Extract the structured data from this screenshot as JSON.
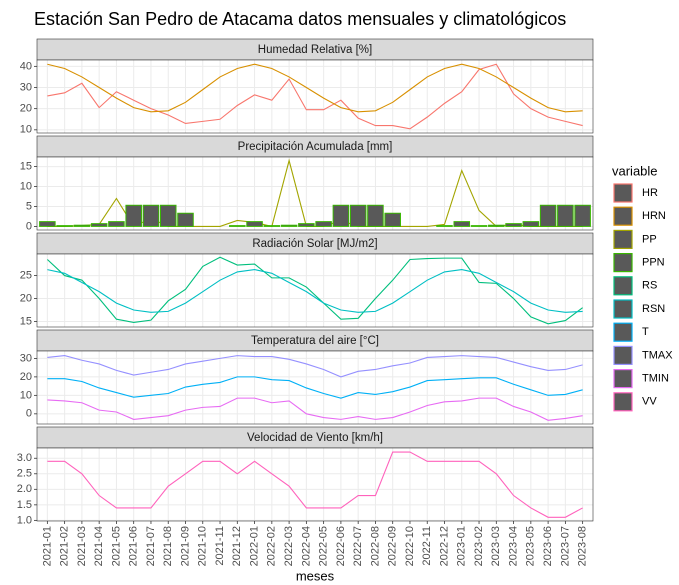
{
  "chart_data": {
    "type": "line",
    "title": "Estación San Pedro de Atacama datos mensuales y climatológicos",
    "xlabel": "meses",
    "legend_title": "variable",
    "categories": [
      "2021-01",
      "2021-02",
      "2021-03",
      "2021-04",
      "2021-05",
      "2021-06",
      "2021-07",
      "2021-08",
      "2021-09",
      "2021-10",
      "2021-11",
      "2021-12",
      "2022-01",
      "2022-02",
      "2022-03",
      "2022-04",
      "2022-05",
      "2022-06",
      "2022-07",
      "2022-08",
      "2022-09",
      "2022-10",
      "2022-11",
      "2022-12",
      "2023-01",
      "2023-02",
      "2023-03",
      "2023-04",
      "2023-05",
      "2023-06",
      "2023-07",
      "2023-08"
    ],
    "grid": true,
    "panels": [
      {
        "title": "Humedad Relativa [%]",
        "ylim": [
          8.5,
          43
        ],
        "yticks": [
          10,
          20,
          30,
          40
        ],
        "series": [
          {
            "name": "HR",
            "color": "#F8766D",
            "values": [
              26,
              27.5,
              32,
              20.5,
              28,
              24,
              20,
              17,
              13,
              14,
              15,
              21.5,
              26.5,
              24,
              34,
              19.5,
              19.5,
              24,
              15.5,
              12,
              12,
              10.5,
              16,
              22.5,
              28,
              38.5,
              41,
              27,
              20,
              16,
              14,
              12
            ]
          },
          {
            "name": "HRN",
            "color": "#D89000",
            "values": [
              41,
              39,
              35,
              30,
              25,
              20.5,
              18.5,
              19,
              23,
              29,
              35,
              39,
              41,
              39,
              35,
              30,
              25,
              20.5,
              18.5,
              19,
              23,
              29,
              35,
              39,
              41,
              39,
              35,
              30,
              25,
              20.5,
              18.5,
              19
            ]
          }
        ]
      },
      {
        "title": "Precipitación Acumulada [mm]",
        "ylim": [
          -0.9,
          17.4
        ],
        "yticks": [
          0,
          5,
          10,
          15
        ],
        "series": [
          {
            "name": "PP",
            "color": "#A3A500",
            "values": [
              0,
              0,
              0.2,
              0.5,
              7,
              0,
              2,
              0,
              0,
              0,
              0,
              1.5,
              1,
              0,
              16.5,
              0,
              0,
              1.5,
              0,
              0,
              0,
              0,
              0,
              0.5,
              14,
              4,
              0,
              0.5,
              0,
              0,
              0,
              0
            ]
          },
          {
            "name": "PPN",
            "color": "#39B600",
            "type": "bar",
            "values": [
              1.2,
              0.2,
              0.3,
              0.7,
              1.2,
              5.3,
              5.3,
              5.3,
              3.3,
              0,
              0,
              0.2,
              1.2,
              0.2,
              0.3,
              0.7,
              1.2,
              5.3,
              5.3,
              5.3,
              3.3,
              0,
              0,
              0.2,
              1.2,
              0.2,
              0.3,
              0.7,
              1.2,
              5.3,
              5.3,
              5.3
            ]
          }
        ]
      },
      {
        "title": "Radiación Solar [MJ/m2]",
        "ylim": [
          13.8,
          29.7
        ],
        "yticks": [
          15,
          20,
          25
        ],
        "series": [
          {
            "name": "RS",
            "color": "#00BF7D",
            "values": [
              28.5,
              25,
              24,
              20,
              15.5,
              14.8,
              15.3,
              19.5,
              22,
              27,
              29,
              27.3,
              27.5,
              24.5,
              24.5,
              22.5,
              19,
              15.5,
              15.7,
              20,
              24,
              28.5,
              28.7,
              28.8,
              28.8,
              23.5,
              23.3,
              20,
              16,
              14.5,
              15.2,
              18
            ]
          },
          {
            "name": "RSN",
            "color": "#00BFC4",
            "values": [
              26.3,
              25.5,
              23.5,
              21.5,
              19,
              17.5,
              17,
              17.2,
              19,
              21.5,
              24,
              25.8,
              26.3,
              25.5,
              23.5,
              21.5,
              19,
              17.5,
              17,
              17.2,
              19,
              21.5,
              24,
              25.8,
              26.3,
              25.5,
              23.5,
              21.5,
              19,
              17.5,
              17,
              17.2
            ]
          }
        ]
      },
      {
        "title": "Temperatura del aire [°C]",
        "ylim": [
          -5.5,
          34
        ],
        "yticks": [
          0,
          10,
          20,
          30
        ],
        "series": [
          {
            "name": "T",
            "color": "#00B0F6",
            "values": [
              19,
              19,
              17.5,
              14,
              11.5,
              9,
              10,
              11,
              14.5,
              16,
              17,
              20,
              20,
              18.5,
              18,
              14,
              11,
              8.5,
              11.5,
              10.5,
              12,
              14.5,
              18,
              18.5,
              19,
              19.5,
              19.5,
              16,
              13,
              10,
              10.5,
              13
            ]
          },
          {
            "name": "TMAX",
            "color": "#9590FF",
            "values": [
              30.5,
              31.5,
              29,
              27,
              23.5,
              21,
              22.5,
              24,
              27,
              28.5,
              30,
              31.5,
              31,
              31,
              29.5,
              27,
              24,
              20,
              23,
              24,
              26,
              27.5,
              30.5,
              31,
              31.5,
              31,
              30.5,
              28,
              25.5,
              23.5,
              24,
              26.5
            ]
          },
          {
            "name": "TMIN",
            "color": "#E76BF3",
            "values": [
              7.5,
              7,
              6,
              2,
              1,
              -3,
              -2,
              -1,
              2,
              3.5,
              4,
              8.5,
              8.5,
              6,
              7,
              0,
              -2,
              -3,
              -1.5,
              -3,
              -2,
              1,
              4.5,
              6.5,
              7,
              8.5,
              8.5,
              4,
              1,
              -3.5,
              -2.5,
              -1
            ]
          }
        ]
      },
      {
        "title": "Velocidad de Viento [km/h]",
        "ylim": [
          0.98,
          3.33
        ],
        "yticks": [
          {
            "value": 1,
            "label": "1.0"
          },
          1.5,
          {
            "value": 2,
            "label": "2.0"
          },
          2.5,
          {
            "value": 3,
            "label": "3.0"
          }
        ],
        "series": [
          {
            "name": "VV",
            "color": "#FF62BC",
            "values": [
              2.9,
              2.9,
              2.5,
              1.8,
              1.4,
              1.4,
              1.4,
              2.1,
              2.5,
              2.9,
              2.9,
              2.5,
              2.9,
              2.5,
              2.1,
              1.4,
              1.4,
              1.4,
              1.8,
              1.8,
              3.2,
              3.2,
              2.9,
              2.9,
              2.9,
              2.9,
              2.5,
              1.8,
              1.4,
              1.1,
              1.1,
              1.4
            ]
          }
        ]
      }
    ]
  }
}
